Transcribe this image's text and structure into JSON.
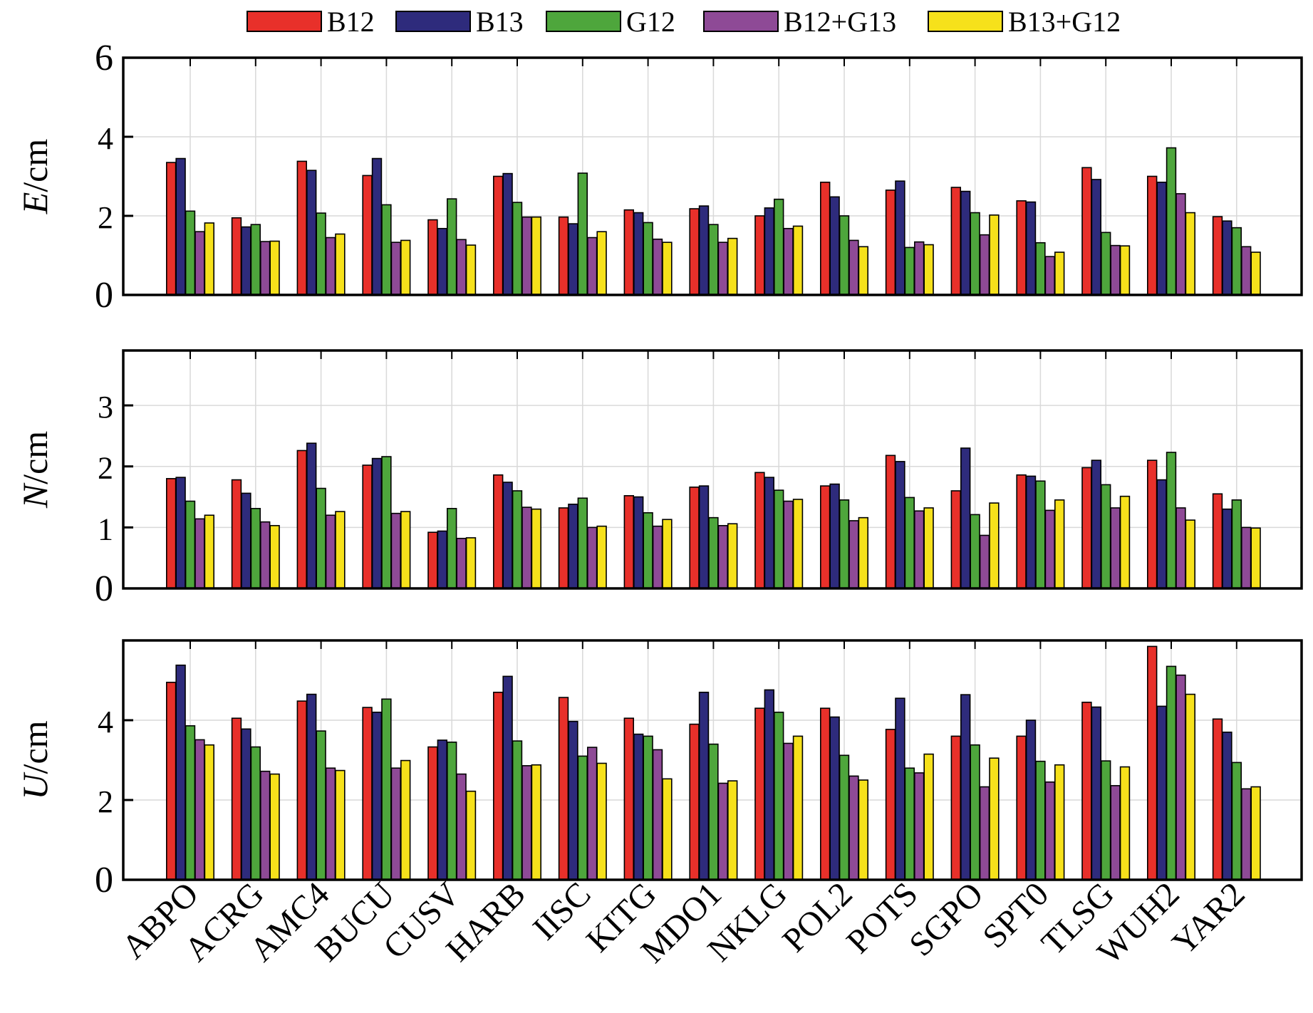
{
  "chart_data": {
    "type": "bar",
    "categories": [
      "ABPO",
      "ACRG",
      "AMC4",
      "BUCU",
      "CUSV",
      "HARB",
      "IISC",
      "KITG",
      "MDO1",
      "NKLG",
      "POL2",
      "POTS",
      "SGPO",
      "SPT0",
      "TLSG",
      "WUH2",
      "YAR2"
    ],
    "legend": {
      "placement": "top-center",
      "entries": [
        {
          "name": "B12",
          "color": "#e8302a"
        },
        {
          "name": "B13",
          "color": "#2e2b7c"
        },
        {
          "name": "G12",
          "color": "#4ea63c"
        },
        {
          "name": "B12+G13",
          "color": "#8e4a96"
        },
        {
          "name": "B13+G12",
          "color": "#f6e11b"
        }
      ]
    },
    "grid": true,
    "panels": [
      {
        "ylabel_var": "E",
        "ylabel_unit": "/cm",
        "ylim": [
          0,
          6
        ],
        "yticks": [
          "0",
          "2",
          "4",
          "6"
        ],
        "series": [
          {
            "name": "B12",
            "values": [
              3.35,
              1.95,
              3.38,
              3.02,
              1.9,
              3.0,
              1.97,
              2.15,
              2.18,
              2.0,
              2.85,
              2.65,
              2.72,
              2.38,
              3.22,
              3.0,
              1.98
            ]
          },
          {
            "name": "B13",
            "values": [
              3.45,
              1.72,
              3.15,
              3.45,
              1.68,
              3.07,
              1.8,
              2.08,
              2.25,
              2.2,
              2.48,
              2.88,
              2.62,
              2.35,
              2.92,
              2.85,
              1.87
            ]
          },
          {
            "name": "G12",
            "values": [
              2.12,
              1.78,
              2.07,
              2.28,
              2.43,
              2.34,
              3.08,
              1.83,
              1.78,
              2.42,
              2.0,
              1.2,
              2.08,
              1.32,
              1.58,
              3.72,
              1.7
            ]
          },
          {
            "name": "B12+G13",
            "values": [
              1.6,
              1.35,
              1.45,
              1.33,
              1.4,
              1.97,
              1.45,
              1.41,
              1.33,
              1.68,
              1.38,
              1.34,
              1.52,
              0.97,
              1.25,
              2.56,
              1.22
            ]
          },
          {
            "name": "B13+G12",
            "values": [
              1.82,
              1.36,
              1.54,
              1.38,
              1.26,
              1.97,
              1.6,
              1.33,
              1.43,
              1.74,
              1.22,
              1.27,
              2.02,
              1.08,
              1.24,
              2.08,
              1.08
            ]
          }
        ]
      },
      {
        "ylabel_var": "N",
        "ylabel_unit": "/cm",
        "ylim": [
          0,
          3.9
        ],
        "yticks": [
          "0",
          "1",
          "2",
          "3"
        ],
        "series": [
          {
            "name": "B12",
            "values": [
              1.8,
              1.78,
              2.26,
              2.02,
              0.92,
              1.86,
              1.32,
              1.52,
              1.66,
              1.9,
              1.68,
              2.18,
              1.6,
              1.86,
              1.98,
              2.1,
              1.55
            ]
          },
          {
            "name": "B13",
            "values": [
              1.82,
              1.56,
              2.38,
              2.13,
              0.94,
              1.74,
              1.38,
              1.5,
              1.68,
              1.82,
              1.71,
              2.08,
              2.3,
              1.84,
              2.1,
              1.78,
              1.3
            ]
          },
          {
            "name": "G12",
            "values": [
              1.43,
              1.31,
              1.64,
              2.16,
              1.31,
              1.6,
              1.48,
              1.24,
              1.16,
              1.61,
              1.45,
              1.49,
              1.21,
              1.76,
              1.7,
              2.23,
              1.45
            ]
          },
          {
            "name": "B12+G13",
            "values": [
              1.14,
              1.09,
              1.2,
              1.23,
              0.82,
              1.33,
              1.0,
              1.02,
              1.03,
              1.43,
              1.11,
              1.27,
              0.87,
              1.28,
              1.32,
              1.32,
              1.0
            ]
          },
          {
            "name": "B13+G12",
            "values": [
              1.2,
              1.03,
              1.26,
              1.26,
              0.83,
              1.3,
              1.02,
              1.13,
              1.06,
              1.46,
              1.16,
              1.32,
              1.4,
              1.45,
              1.51,
              1.12,
              0.99
            ]
          }
        ]
      },
      {
        "ylabel_var": "U",
        "ylabel_unit": "/cm",
        "ylim": [
          0,
          6
        ],
        "yticks": [
          "0",
          "2",
          "4"
        ],
        "series": [
          {
            "name": "B12",
            "values": [
              4.95,
              4.05,
              4.48,
              4.32,
              3.33,
              4.7,
              4.57,
              4.05,
              3.9,
              4.3,
              4.3,
              3.77,
              3.6,
              3.6,
              4.45,
              5.85,
              4.03
            ]
          },
          {
            "name": "B13",
            "values": [
              5.38,
              3.78,
              4.65,
              4.2,
              3.5,
              5.1,
              3.97,
              3.65,
              4.7,
              4.76,
              4.08,
              4.55,
              4.64,
              4.0,
              4.33,
              4.35,
              3.7
            ]
          },
          {
            "name": "G12",
            "values": [
              3.86,
              3.33,
              3.73,
              4.53,
              3.45,
              3.48,
              3.1,
              3.6,
              3.4,
              4.2,
              3.12,
              2.8,
              3.38,
              2.97,
              2.98,
              5.35,
              2.94
            ]
          },
          {
            "name": "B12+G13",
            "values": [
              3.51,
              2.72,
              2.8,
              2.8,
              2.65,
              2.86,
              3.32,
              3.26,
              2.42,
              3.42,
              2.6,
              2.68,
              2.33,
              2.45,
              2.36,
              5.13,
              2.28
            ]
          },
          {
            "name": "B13+G12",
            "values": [
              3.38,
              2.65,
              2.74,
              2.99,
              2.22,
              2.88,
              2.92,
              2.53,
              2.48,
              3.6,
              2.5,
              3.15,
              3.05,
              2.88,
              2.83,
              4.65,
              2.33
            ]
          }
        ]
      }
    ]
  }
}
